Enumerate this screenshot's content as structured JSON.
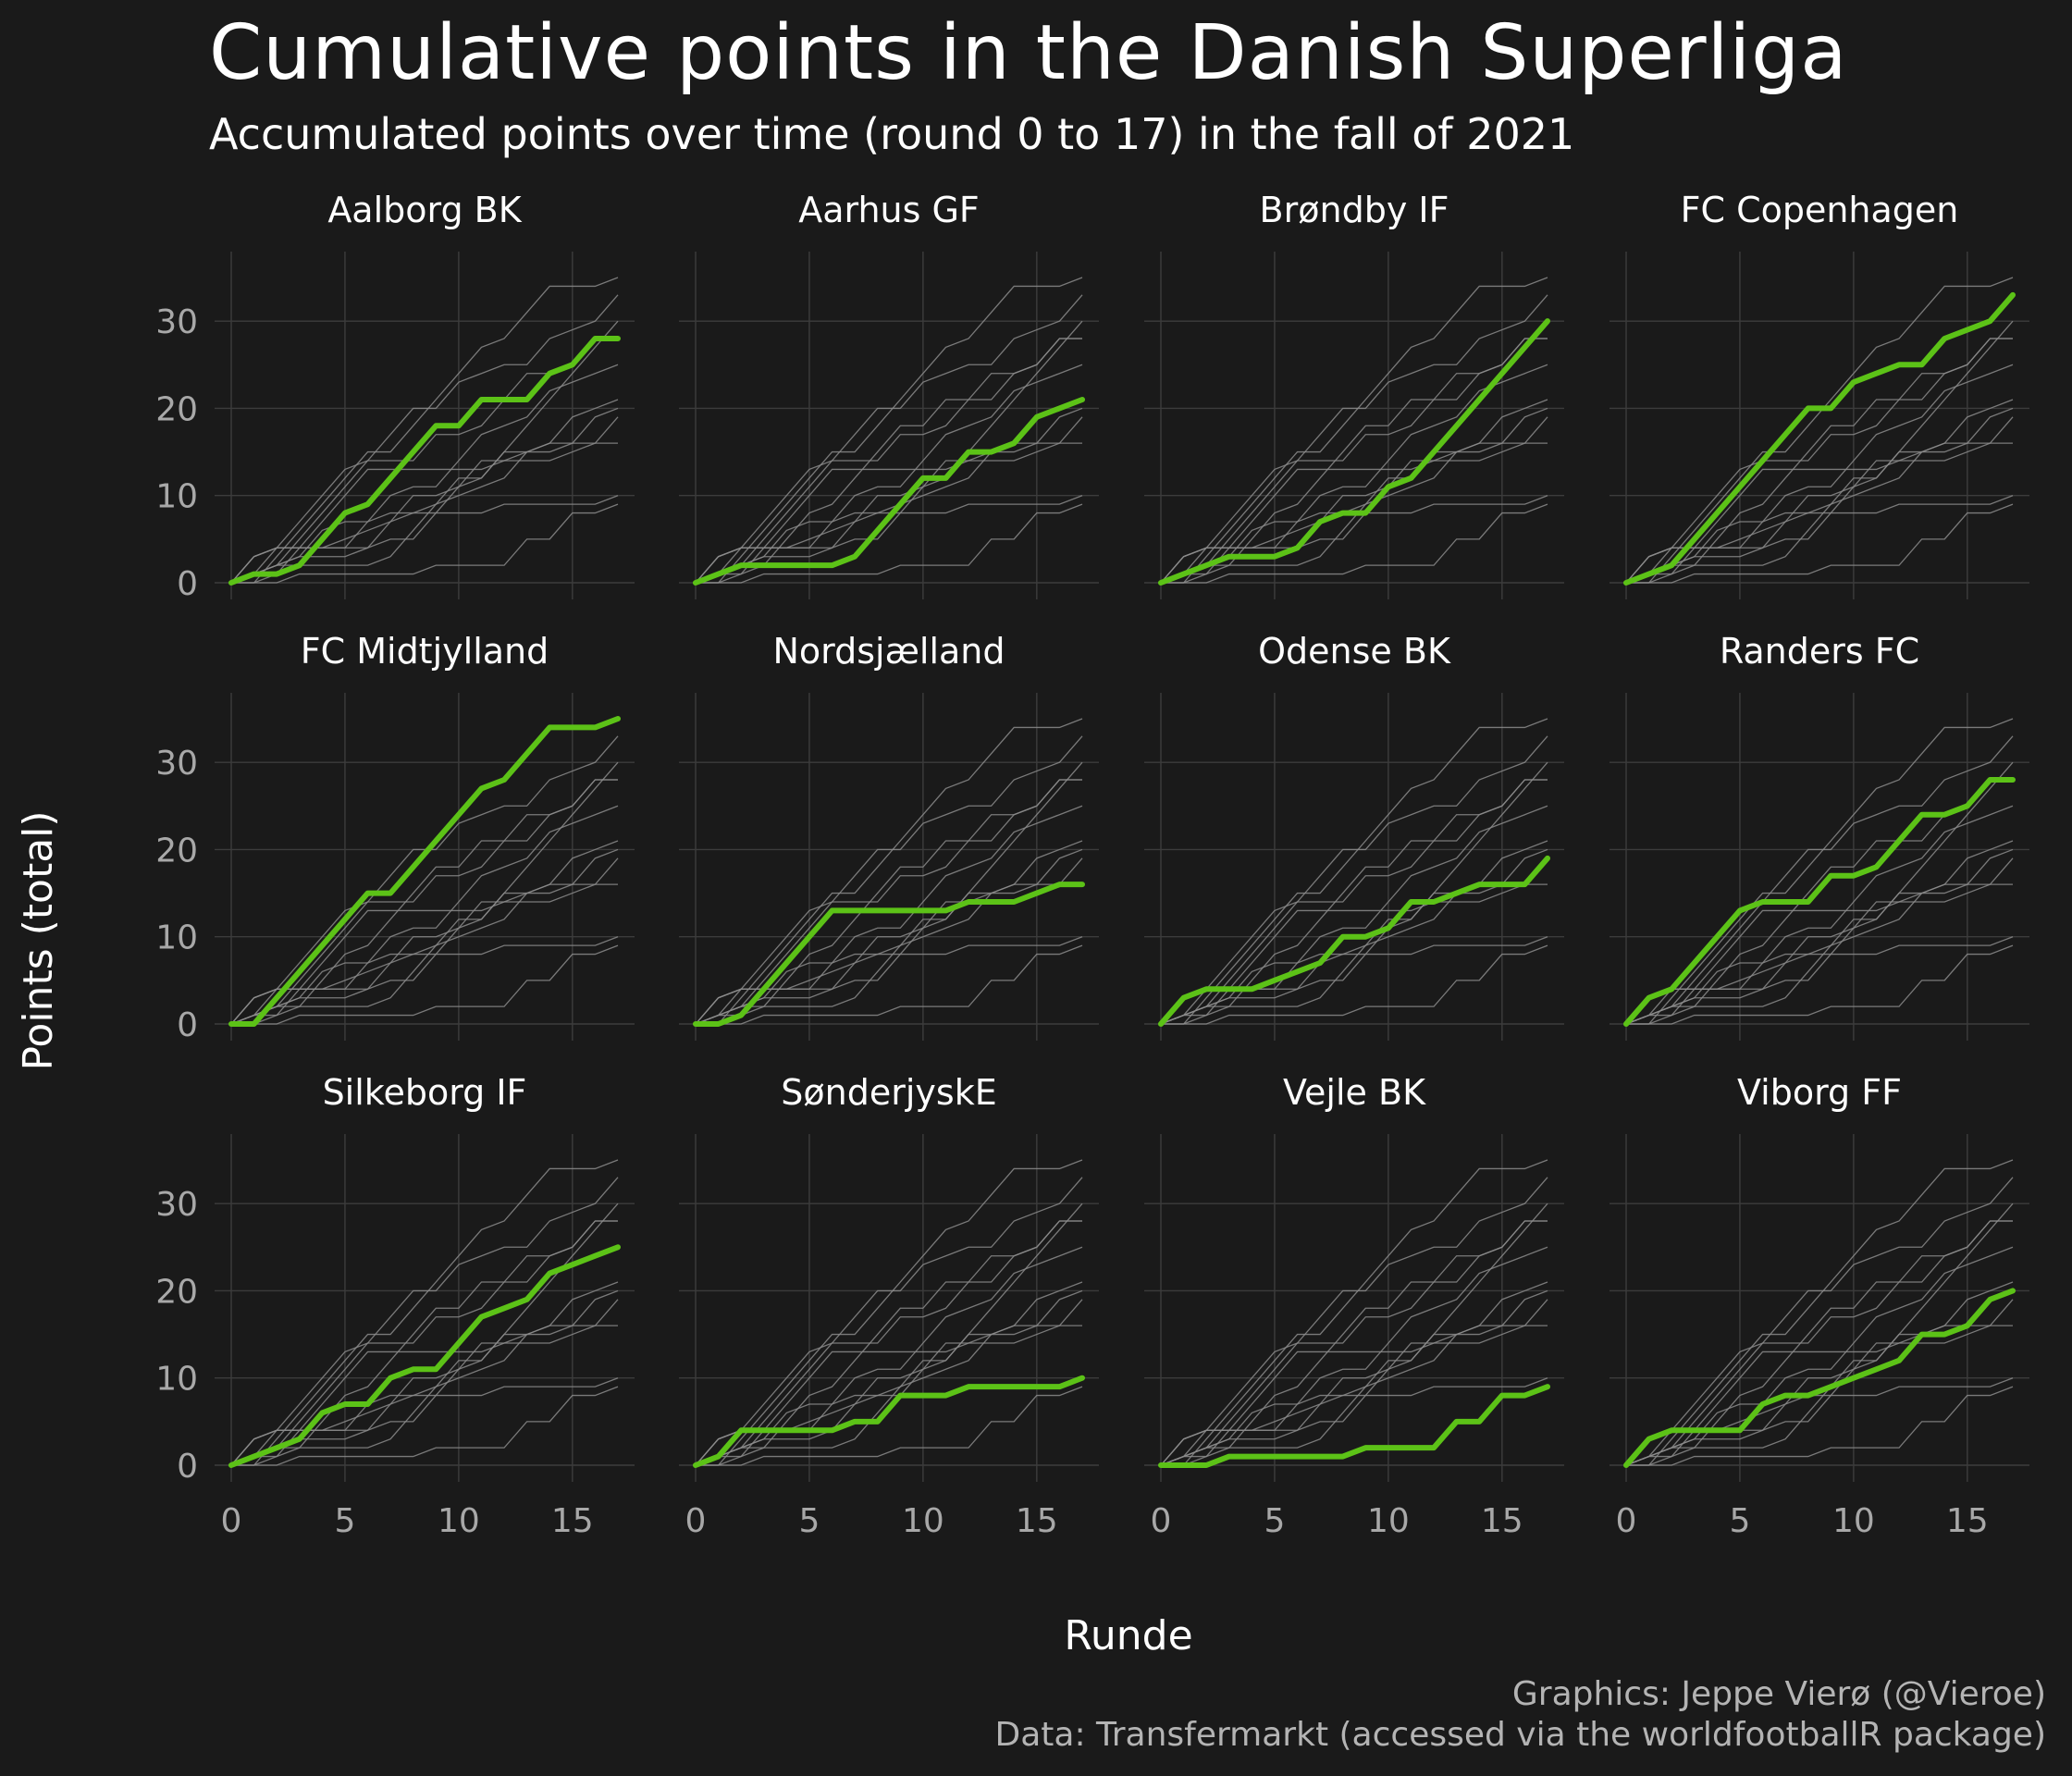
{
  "chart_data": {
    "type": "line",
    "title": "Cumulative points in the Danish Superliga",
    "subtitle": "Accumulated points over time (round 0 to 17) in the fall of 2021",
    "xlabel": "Runde",
    "ylabel": "Points (total)",
    "x": [
      0,
      1,
      2,
      3,
      4,
      5,
      6,
      7,
      8,
      9,
      10,
      11,
      12,
      13,
      14,
      15,
      16,
      17
    ],
    "xlim": [
      0,
      17
    ],
    "ylim": [
      0,
      35
    ],
    "x_ticks": [
      0,
      5,
      10,
      15
    ],
    "y_ticks": [
      0,
      10,
      20,
      30
    ],
    "grid": true,
    "layout": "facets 4 columns x 3 rows",
    "highlight_color": "#5cc217",
    "background_line_color": "#8c8c8c",
    "series": [
      {
        "name": "Aalborg BK",
        "values": [
          0,
          1,
          1,
          2,
          5,
          8,
          9,
          12,
          15,
          18,
          18,
          21,
          21,
          21,
          24,
          25,
          28,
          28
        ]
      },
      {
        "name": "Aarhus GF",
        "values": [
          0,
          1,
          2,
          2,
          2,
          2,
          2,
          3,
          6,
          9,
          12,
          12,
          15,
          15,
          16,
          19,
          20,
          21
        ]
      },
      {
        "name": "Brøndby IF",
        "values": [
          0,
          1,
          2,
          3,
          3,
          3,
          4,
          7,
          8,
          8,
          11,
          12,
          15,
          18,
          21,
          24,
          27,
          30
        ]
      },
      {
        "name": "FC Copenhagen",
        "values": [
          0,
          1,
          2,
          5,
          8,
          11,
          14,
          17,
          20,
          20,
          23,
          24,
          25,
          25,
          28,
          29,
          30,
          33
        ]
      },
      {
        "name": "FC Midtjylland",
        "values": [
          0,
          0,
          3,
          6,
          9,
          12,
          15,
          15,
          18,
          21,
          24,
          27,
          28,
          31,
          34,
          34,
          34,
          35
        ]
      },
      {
        "name": "Nordsjælland",
        "values": [
          0,
          0,
          1,
          4,
          7,
          10,
          13,
          13,
          13,
          13,
          13,
          13,
          14,
          14,
          14,
          15,
          16,
          16
        ]
      },
      {
        "name": "Odense BK",
        "values": [
          0,
          3,
          4,
          4,
          4,
          5,
          6,
          7,
          10,
          10,
          11,
          14,
          14,
          15,
          16,
          16,
          16,
          19
        ]
      },
      {
        "name": "Randers FC",
        "values": [
          0,
          3,
          4,
          7,
          10,
          13,
          14,
          14,
          14,
          17,
          17,
          18,
          21,
          24,
          24,
          25,
          28,
          28
        ]
      },
      {
        "name": "Silkeborg IF",
        "values": [
          0,
          1,
          2,
          3,
          6,
          7,
          7,
          10,
          11,
          11,
          14,
          17,
          18,
          19,
          22,
          23,
          24,
          25
        ]
      },
      {
        "name": "SønderjyskE",
        "values": [
          0,
          1,
          4,
          4,
          4,
          4,
          4,
          5,
          5,
          8,
          8,
          8,
          9,
          9,
          9,
          9,
          9,
          10
        ]
      },
      {
        "name": "Vejle BK",
        "values": [
          0,
          0,
          0,
          1,
          1,
          1,
          1,
          1,
          1,
          2,
          2,
          2,
          2,
          5,
          5,
          8,
          8,
          9
        ]
      },
      {
        "name": "Viborg FF",
        "values": [
          0,
          3,
          4,
          4,
          4,
          4,
          7,
          8,
          8,
          9,
          10,
          11,
          12,
          15,
          15,
          16,
          19,
          20
        ]
      }
    ]
  },
  "caption": {
    "line1": "Graphics: Jeppe Vierø (@Vieroe)",
    "line2": "Data: Transfermarkt (accessed via the worldfootballR package)"
  }
}
